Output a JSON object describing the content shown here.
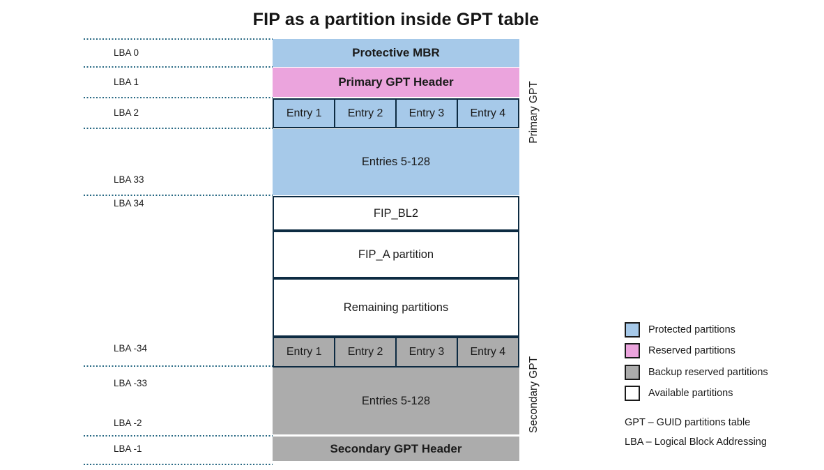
{
  "title": "FIP as a partition inside GPT table",
  "lba_labels": [
    "LBA 0",
    "LBA 1",
    "LBA 2",
    "LBA 33",
    "LBA 34",
    "LBA -34",
    "LBA -33",
    "LBA -2",
    "LBA -1"
  ],
  "blocks": {
    "protective_mbr": "Protective MBR",
    "primary_gpt_header": "Primary GPT Header",
    "primary_entries": [
      "Entry 1",
      "Entry 2",
      "Entry 3",
      "Entry 4"
    ],
    "primary_entries_rest": "Entries 5-128",
    "fip_bl2": "FIP_BL2",
    "fip_a": "FIP_A partition",
    "remaining": "Remaining partitions",
    "secondary_entries": [
      "Entry 1",
      "Entry 2",
      "Entry 3",
      "Entry 4"
    ],
    "secondary_entries_rest": "Entries 5-128",
    "secondary_gpt_header": "Secondary GPT Header"
  },
  "side_labels": {
    "primary": "Primary GPT",
    "secondary": "Secondary GPT"
  },
  "legend": {
    "items": [
      {
        "label": "Protected partitions",
        "color": "#a6c9e9"
      },
      {
        "label": "Reserved partitions",
        "color": "#eba4dd"
      },
      {
        "label": "Backup reserved partitions",
        "color": "#acacac"
      },
      {
        "label": "Available partitions",
        "color": "#ffffff"
      }
    ],
    "abbreviations": [
      "GPT – GUID partitions table",
      "LBA – Logical Block Addressing"
    ]
  },
  "colors": {
    "protected": "#a6c9e9",
    "reserved": "#eba4dd",
    "backup": "#acacac",
    "available": "#ffffff",
    "block_border": "#0d2b42",
    "dotted_line": "#246681",
    "text": "#1b1b1b"
  }
}
